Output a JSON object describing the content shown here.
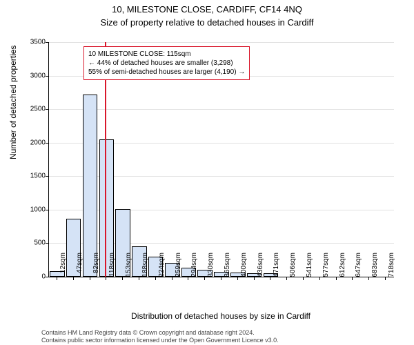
{
  "header": {
    "address": "10, MILESTONE CLOSE, CARDIFF, CF14 4NQ",
    "subtitle": "Size of property relative to detached houses in Cardiff"
  },
  "chart": {
    "type": "histogram",
    "y_label": "Number of detached properties",
    "x_label": "Distribution of detached houses by size in Cardiff",
    "ylim": [
      0,
      3500
    ],
    "ytick_step": 500,
    "y_ticks": [
      0,
      500,
      1000,
      1500,
      2000,
      2500,
      3000,
      3500
    ],
    "categories": [
      "12sqm",
      "47sqm",
      "82sqm",
      "118sqm",
      "153sqm",
      "188sqm",
      "224sqm",
      "259sqm",
      "294sqm",
      "330sqm",
      "365sqm",
      "400sqm",
      "436sqm",
      "471sqm",
      "506sqm",
      "541sqm",
      "577sqm",
      "612sqm",
      "647sqm",
      "683sqm",
      "718sqm"
    ],
    "values": [
      80,
      860,
      2720,
      2050,
      1010,
      450,
      300,
      210,
      130,
      100,
      75,
      60,
      50,
      50,
      0,
      0,
      0,
      0,
      0,
      0,
      0
    ],
    "bar_fill": "#d5e3f6",
    "bar_border": "#000000",
    "bar_width": 0.9,
    "background_color": "#ffffff",
    "grid_color": "#e0e0e0",
    "axis_color": "#000000",
    "tick_fontsize": 10,
    "label_fontsize": 12,
    "marker": {
      "x_category_index": 2.9,
      "color": "#d9172b",
      "width": 2
    },
    "annotation": {
      "line1": "10 MILESTONE CLOSE: 115sqm",
      "line2": "← 44% of detached houses are smaller (3,298)",
      "line3": "55% of semi-detached houses are larger (4,190) →",
      "border_color": "#d9172b",
      "background": "#ffffff",
      "fontsize": 10
    }
  },
  "footer": {
    "line1": "Contains HM Land Registry data © Crown copyright and database right 2024.",
    "line2": "Contains public sector information licensed under the Open Government Licence v3.0.",
    "color": "#444444"
  }
}
